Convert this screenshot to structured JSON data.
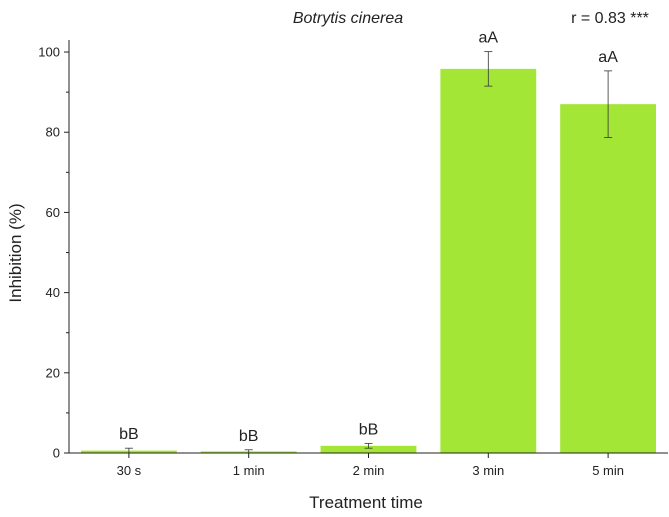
{
  "chart_data": {
    "type": "bar",
    "title": "Botrytis cinerea",
    "annotation": "r = 0.83 ***",
    "xlabel": "Treatment time",
    "ylabel": "Inhibition (%)",
    "ylim": [
      0,
      100
    ],
    "yticks": [
      0,
      20,
      40,
      60,
      80,
      100
    ],
    "categories": [
      "30 s",
      "1 min",
      "2 min",
      "3 min",
      "5 min"
    ],
    "values": [
      0.6,
      0.4,
      1.8,
      95.8,
      87.0
    ],
    "errors": [
      0.6,
      0.4,
      0.6,
      4.3,
      8.3
    ],
    "labels": [
      "bB",
      "bB",
      "bB",
      "aA",
      "aA"
    ],
    "bar_color": "#a3e635",
    "grid": false,
    "legend": "none"
  }
}
